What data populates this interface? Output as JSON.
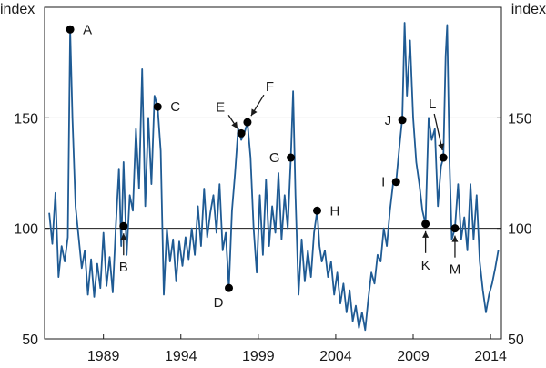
{
  "chart_data": {
    "type": "line",
    "title": "",
    "xlabel": "",
    "ylabel": "index",
    "y_unit_left": "index",
    "y_unit_right": "index",
    "xlim": [
      1985.2,
      2014.7
    ],
    "ylim": [
      50,
      200
    ],
    "grid": "horizontal at 150; reference line at 100",
    "x_tick_values": [
      1989,
      1994,
      1999,
      2004,
      2009,
      2014
    ],
    "x_tick_labels": [
      "1989",
      "1994",
      "1999",
      "2004",
      "2009",
      "2014"
    ],
    "y_tick_values": [
      50,
      100,
      150
    ],
    "y_tick_labels": [
      "50",
      "100",
      "150"
    ],
    "reference_line": 100,
    "series": [
      {
        "name": "index",
        "color": "#1f5b94",
        "points": [
          [
            1985.5,
            107
          ],
          [
            1985.7,
            93
          ],
          [
            1985.9,
            116
          ],
          [
            1986.1,
            78
          ],
          [
            1986.3,
            92
          ],
          [
            1986.5,
            85
          ],
          [
            1986.7,
            96
          ],
          [
            1986.85,
            190
          ],
          [
            1987.0,
            150
          ],
          [
            1987.2,
            110
          ],
          [
            1987.4,
            96
          ],
          [
            1987.6,
            82
          ],
          [
            1987.8,
            90
          ],
          [
            1988.0,
            70
          ],
          [
            1988.2,
            86
          ],
          [
            1988.4,
            69
          ],
          [
            1988.6,
            84
          ],
          [
            1988.8,
            73
          ],
          [
            1989.0,
            98
          ],
          [
            1989.2,
            74
          ],
          [
            1989.4,
            87
          ],
          [
            1989.6,
            71
          ],
          [
            1989.8,
            101
          ],
          [
            1990.0,
            127
          ],
          [
            1990.15,
            92
          ],
          [
            1990.3,
            130
          ],
          [
            1990.5,
            88
          ],
          [
            1990.7,
            115
          ],
          [
            1990.9,
            108
          ],
          [
            1991.1,
            145
          ],
          [
            1991.3,
            118
          ],
          [
            1991.5,
            172
          ],
          [
            1991.7,
            110
          ],
          [
            1991.9,
            150
          ],
          [
            1992.1,
            120
          ],
          [
            1992.3,
            160
          ],
          [
            1992.5,
            155
          ],
          [
            1992.7,
            135
          ],
          [
            1992.9,
            70
          ],
          [
            1993.1,
            100
          ],
          [
            1993.3,
            85
          ],
          [
            1993.5,
            95
          ],
          [
            1993.7,
            76
          ],
          [
            1993.9,
            94
          ],
          [
            1994.1,
            83
          ],
          [
            1994.3,
            96
          ],
          [
            1994.5,
            86
          ],
          [
            1994.7,
            100
          ],
          [
            1994.9,
            88
          ],
          [
            1995.1,
            110
          ],
          [
            1995.3,
            92
          ],
          [
            1995.5,
            118
          ],
          [
            1995.7,
            96
          ],
          [
            1995.9,
            107
          ],
          [
            1996.1,
            115
          ],
          [
            1996.3,
            98
          ],
          [
            1996.5,
            120
          ],
          [
            1996.7,
            90
          ],
          [
            1996.9,
            98
          ],
          [
            1997.1,
            73
          ],
          [
            1997.3,
            108
          ],
          [
            1997.5,
            125
          ],
          [
            1997.7,
            145
          ],
          [
            1997.9,
            140
          ],
          [
            1998.1,
            143
          ],
          [
            1998.3,
            148
          ],
          [
            1998.5,
            132
          ],
          [
            1998.7,
            100
          ],
          [
            1998.9,
            80
          ],
          [
            1999.1,
            115
          ],
          [
            1999.3,
            88
          ],
          [
            1999.5,
            122
          ],
          [
            1999.7,
            92
          ],
          [
            1999.9,
            110
          ],
          [
            2000.1,
            98
          ],
          [
            2000.3,
            125
          ],
          [
            2000.5,
            95
          ],
          [
            2000.7,
            115
          ],
          [
            2000.9,
            100
          ],
          [
            2001.1,
            132
          ],
          [
            2001.25,
            162
          ],
          [
            2001.4,
            115
          ],
          [
            2001.6,
            70
          ],
          [
            2001.8,
            95
          ],
          [
            2002.0,
            76
          ],
          [
            2002.2,
            90
          ],
          [
            2002.4,
            78
          ],
          [
            2002.6,
            98
          ],
          [
            2002.8,
            108
          ],
          [
            2002.95,
            92
          ],
          [
            2003.1,
            85
          ],
          [
            2003.3,
            90
          ],
          [
            2003.5,
            78
          ],
          [
            2003.7,
            85
          ],
          [
            2003.9,
            70
          ],
          [
            2004.1,
            80
          ],
          [
            2004.3,
            66
          ],
          [
            2004.5,
            75
          ],
          [
            2004.7,
            62
          ],
          [
            2004.9,
            72
          ],
          [
            2005.1,
            58
          ],
          [
            2005.3,
            65
          ],
          [
            2005.5,
            55
          ],
          [
            2005.7,
            62
          ],
          [
            2005.9,
            54
          ],
          [
            2006.1,
            68
          ],
          [
            2006.3,
            80
          ],
          [
            2006.5,
            75
          ],
          [
            2006.7,
            88
          ],
          [
            2006.9,
            85
          ],
          [
            2007.1,
            100
          ],
          [
            2007.3,
            92
          ],
          [
            2007.5,
            108
          ],
          [
            2007.7,
            120
          ],
          [
            2007.9,
            121
          ],
          [
            2008.1,
            136
          ],
          [
            2008.3,
            150
          ],
          [
            2008.45,
            193
          ],
          [
            2008.6,
            160
          ],
          [
            2008.8,
            185
          ],
          [
            2009.0,
            150
          ],
          [
            2009.2,
            130
          ],
          [
            2009.4,
            120
          ],
          [
            2009.6,
            108
          ],
          [
            2009.8,
            102
          ],
          [
            2010.0,
            150
          ],
          [
            2010.2,
            140
          ],
          [
            2010.4,
            145
          ],
          [
            2010.6,
            110
          ],
          [
            2010.8,
            128
          ],
          [
            2010.95,
            132
          ],
          [
            2011.1,
            178
          ],
          [
            2011.2,
            192
          ],
          [
            2011.35,
            130
          ],
          [
            2011.5,
            95
          ],
          [
            2011.7,
            100
          ],
          [
            2011.9,
            120
          ],
          [
            2012.1,
            95
          ],
          [
            2012.3,
            105
          ],
          [
            2012.5,
            90
          ],
          [
            2012.7,
            120
          ],
          [
            2012.9,
            95
          ],
          [
            2013.1,
            115
          ],
          [
            2013.3,
            85
          ],
          [
            2013.5,
            72
          ],
          [
            2013.7,
            62
          ],
          [
            2013.9,
            70
          ],
          [
            2014.1,
            75
          ],
          [
            2014.3,
            82
          ],
          [
            2014.5,
            90
          ]
        ]
      }
    ],
    "markers": [
      {
        "label": "A",
        "x": 1986.85,
        "y": 190,
        "arrow": false,
        "label_side": "right"
      },
      {
        "label": "B",
        "x": 1990.3,
        "y": 101,
        "arrow": true,
        "label_side": "below"
      },
      {
        "label": "C",
        "x": 1992.5,
        "y": 155,
        "arrow": false,
        "label_side": "right"
      },
      {
        "label": "D",
        "x": 1997.1,
        "y": 73,
        "arrow": false,
        "label_side": "below-left"
      },
      {
        "label": "E",
        "x": 1997.9,
        "y": 143,
        "arrow": true,
        "label_side": "upper-left"
      },
      {
        "label": "F",
        "x": 1998.3,
        "y": 148,
        "arrow": true,
        "label_side": "upper-right"
      },
      {
        "label": "G",
        "x": 2001.1,
        "y": 132,
        "arrow": false,
        "label_side": "left"
      },
      {
        "label": "H",
        "x": 2002.8,
        "y": 108,
        "arrow": false,
        "label_side": "right"
      },
      {
        "label": "I",
        "x": 2007.9,
        "y": 121,
        "arrow": false,
        "label_side": "left"
      },
      {
        "label": "J",
        "x": 2008.3,
        "y": 149,
        "arrow": false,
        "label_side": "left"
      },
      {
        "label": "K",
        "x": 2009.8,
        "y": 102,
        "arrow": true,
        "label_side": "below"
      },
      {
        "label": "L",
        "x": 2010.95,
        "y": 132,
        "arrow": true,
        "label_side": "above-left"
      },
      {
        "label": "M",
        "x": 2011.7,
        "y": 100,
        "arrow": true,
        "label_side": "below"
      }
    ]
  }
}
